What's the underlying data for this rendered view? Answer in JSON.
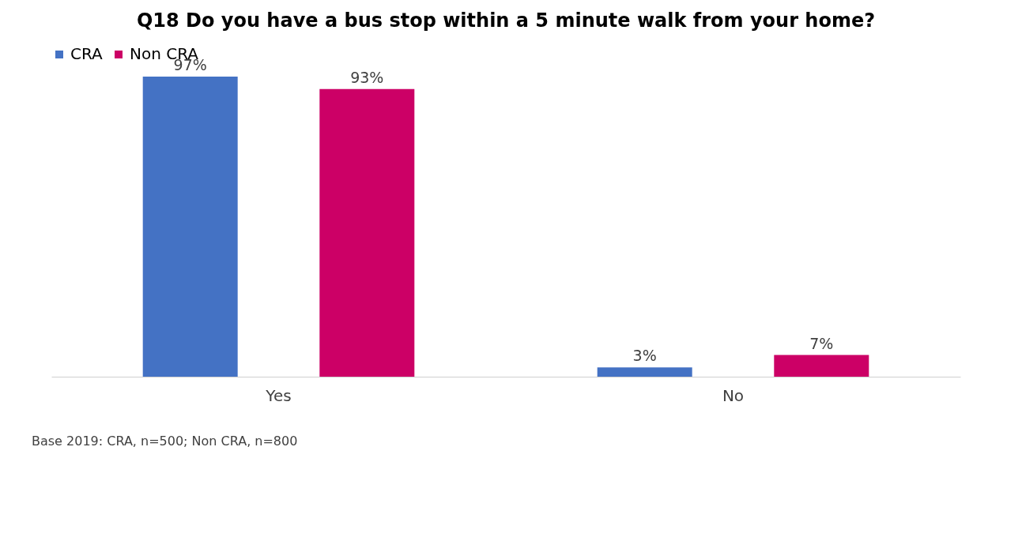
{
  "chart_data": {
    "type": "bar",
    "title": "Q18 Do you have a bus stop within a 5 minute walk from your home?",
    "categories": [
      "Yes",
      "No"
    ],
    "series": [
      {
        "name": "CRA",
        "color": "#4472c4",
        "values": [
          97,
          3
        ],
        "value_labels": [
          "97%",
          "3%"
        ]
      },
      {
        "name": "Non CRA",
        "color": "#cc0066",
        "values": [
          93,
          7
        ],
        "value_labels": [
          "93%",
          "7%"
        ]
      }
    ],
    "grid": false,
    "legend": "top",
    "annotations": [
      "Base 2019: CRA, n=500; Non CRA, n=800"
    ]
  }
}
